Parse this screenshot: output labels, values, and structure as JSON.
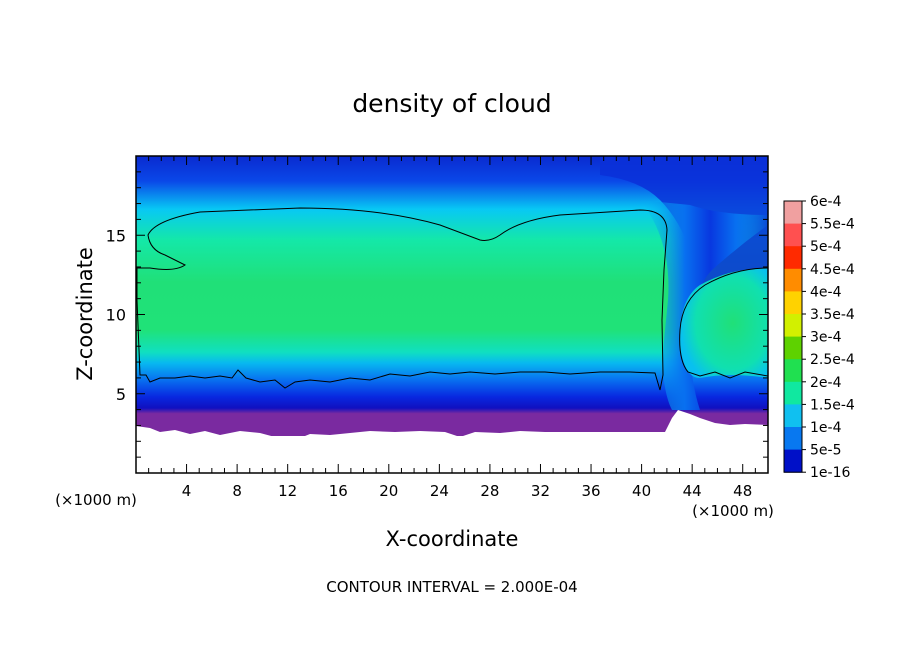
{
  "chart_data": {
    "type": "heatmap",
    "title": "density of cloud",
    "xlabel": "X-coordinate",
    "ylabel": "Z-coordinate",
    "x_unit": "(×1000 m)",
    "x_unit_right": "(×1000 m)",
    "xlim": [
      0,
      50
    ],
    "ylim": [
      0,
      20
    ],
    "x_ticks": [
      4,
      8,
      12,
      16,
      20,
      24,
      28,
      32,
      36,
      40,
      44,
      48
    ],
    "y_ticks": [
      5,
      10,
      15
    ],
    "footer": "CONTOUR INTERVAL = 2.000E-04",
    "contour_interval": 0.0002,
    "contour_level": 0.0002,
    "colorbar": {
      "labels": [
        "6e-4",
        "5.5e-4",
        "5e-4",
        "4.5e-4",
        "4e-4",
        "3.5e-4",
        "3e-4",
        "2.5e-4",
        "2e-4",
        "1.5e-4",
        "1e-4",
        "5e-5",
        "1e-16"
      ],
      "colors": [
        "#f0a0a0",
        "#ff5050",
        "#ff2a00",
        "#ff8c00",
        "#ffd200",
        "#d2f000",
        "#5ed200",
        "#20e050",
        "#10e8a0",
        "#10c0f0",
        "#0878f0",
        "#0010c8",
        "#7a2aa0"
      ]
    },
    "field_summary": {
      "core_range_x": [
        0,
        42
      ],
      "core_range_z": [
        6,
        16.5
      ],
      "core_value": 0.00025,
      "right_cell_x": [
        43,
        50
      ],
      "right_cell_z": [
        6,
        13
      ],
      "cloud_base_z": 2.8,
      "cloud_top_z": 20
    }
  }
}
